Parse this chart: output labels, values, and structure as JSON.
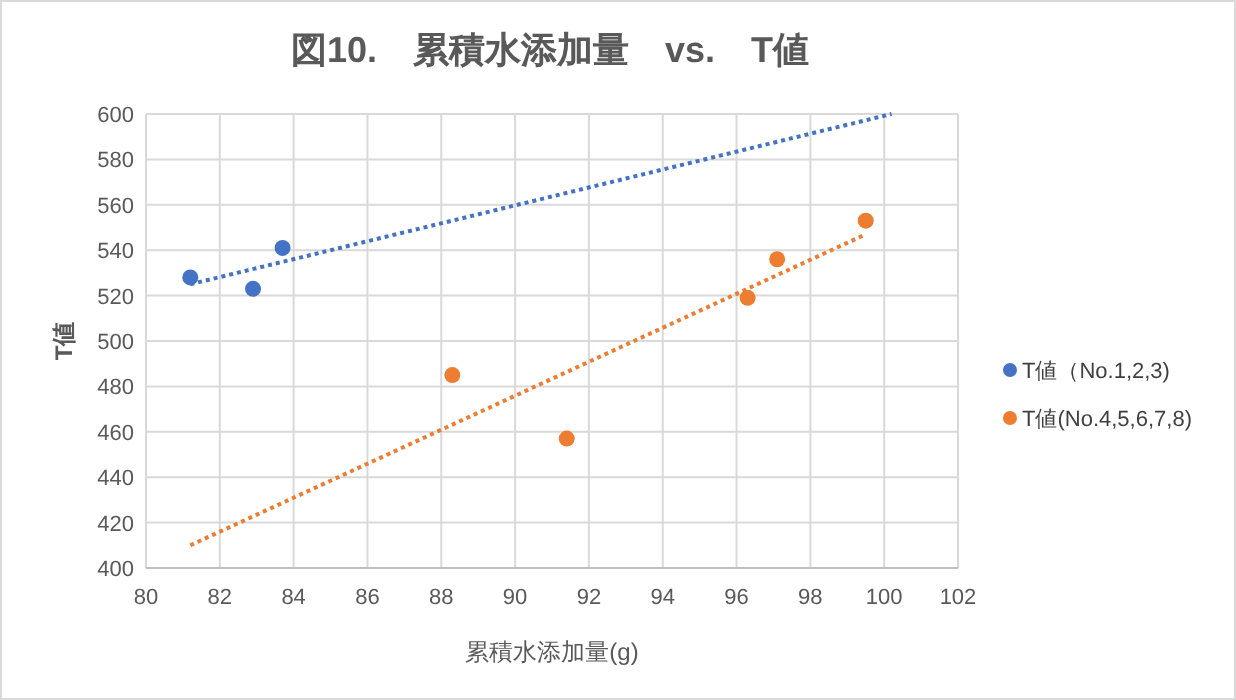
{
  "chart_data": {
    "type": "scatter",
    "title": "図10.　累積水添加量　vs.　T値",
    "xlabel": "累積水添加量(g)",
    "ylabel": "T値",
    "xlim": [
      80,
      102
    ],
    "xticks": [
      80,
      82,
      84,
      86,
      88,
      90,
      92,
      94,
      96,
      98,
      100,
      102
    ],
    "ylim": [
      400,
      600
    ],
    "yticks": [
      400,
      420,
      440,
      460,
      480,
      500,
      520,
      540,
      560,
      580,
      600
    ],
    "grid": true,
    "legend": "right",
    "series": [
      {
        "name": "T値（No.1,2,3)",
        "marker": "circle",
        "color": "#4472c4",
        "x": [
          81.2,
          82.9,
          83.7
        ],
        "values": [
          528,
          523,
          541
        ]
      },
      {
        "name": "T値(No.4,5,6,7,8)",
        "marker": "circle",
        "color": "#ed7d31",
        "x": [
          88.3,
          91.4,
          96.3,
          97.1,
          99.5
        ],
        "values": [
          485,
          457,
          519,
          536,
          553
        ]
      },
      {
        "type": "line",
        "marker": "none",
        "color": "#4472c4",
        "line_style": "dotted",
        "x": [
          81.2,
          100.2
        ],
        "values": [
          525,
          600
        ]
      },
      {
        "type": "line",
        "marker": "none",
        "color": "#ed7d31",
        "line_style": "dotted",
        "x": [
          81.2,
          99.5
        ],
        "values": [
          410,
          547
        ]
      }
    ]
  }
}
